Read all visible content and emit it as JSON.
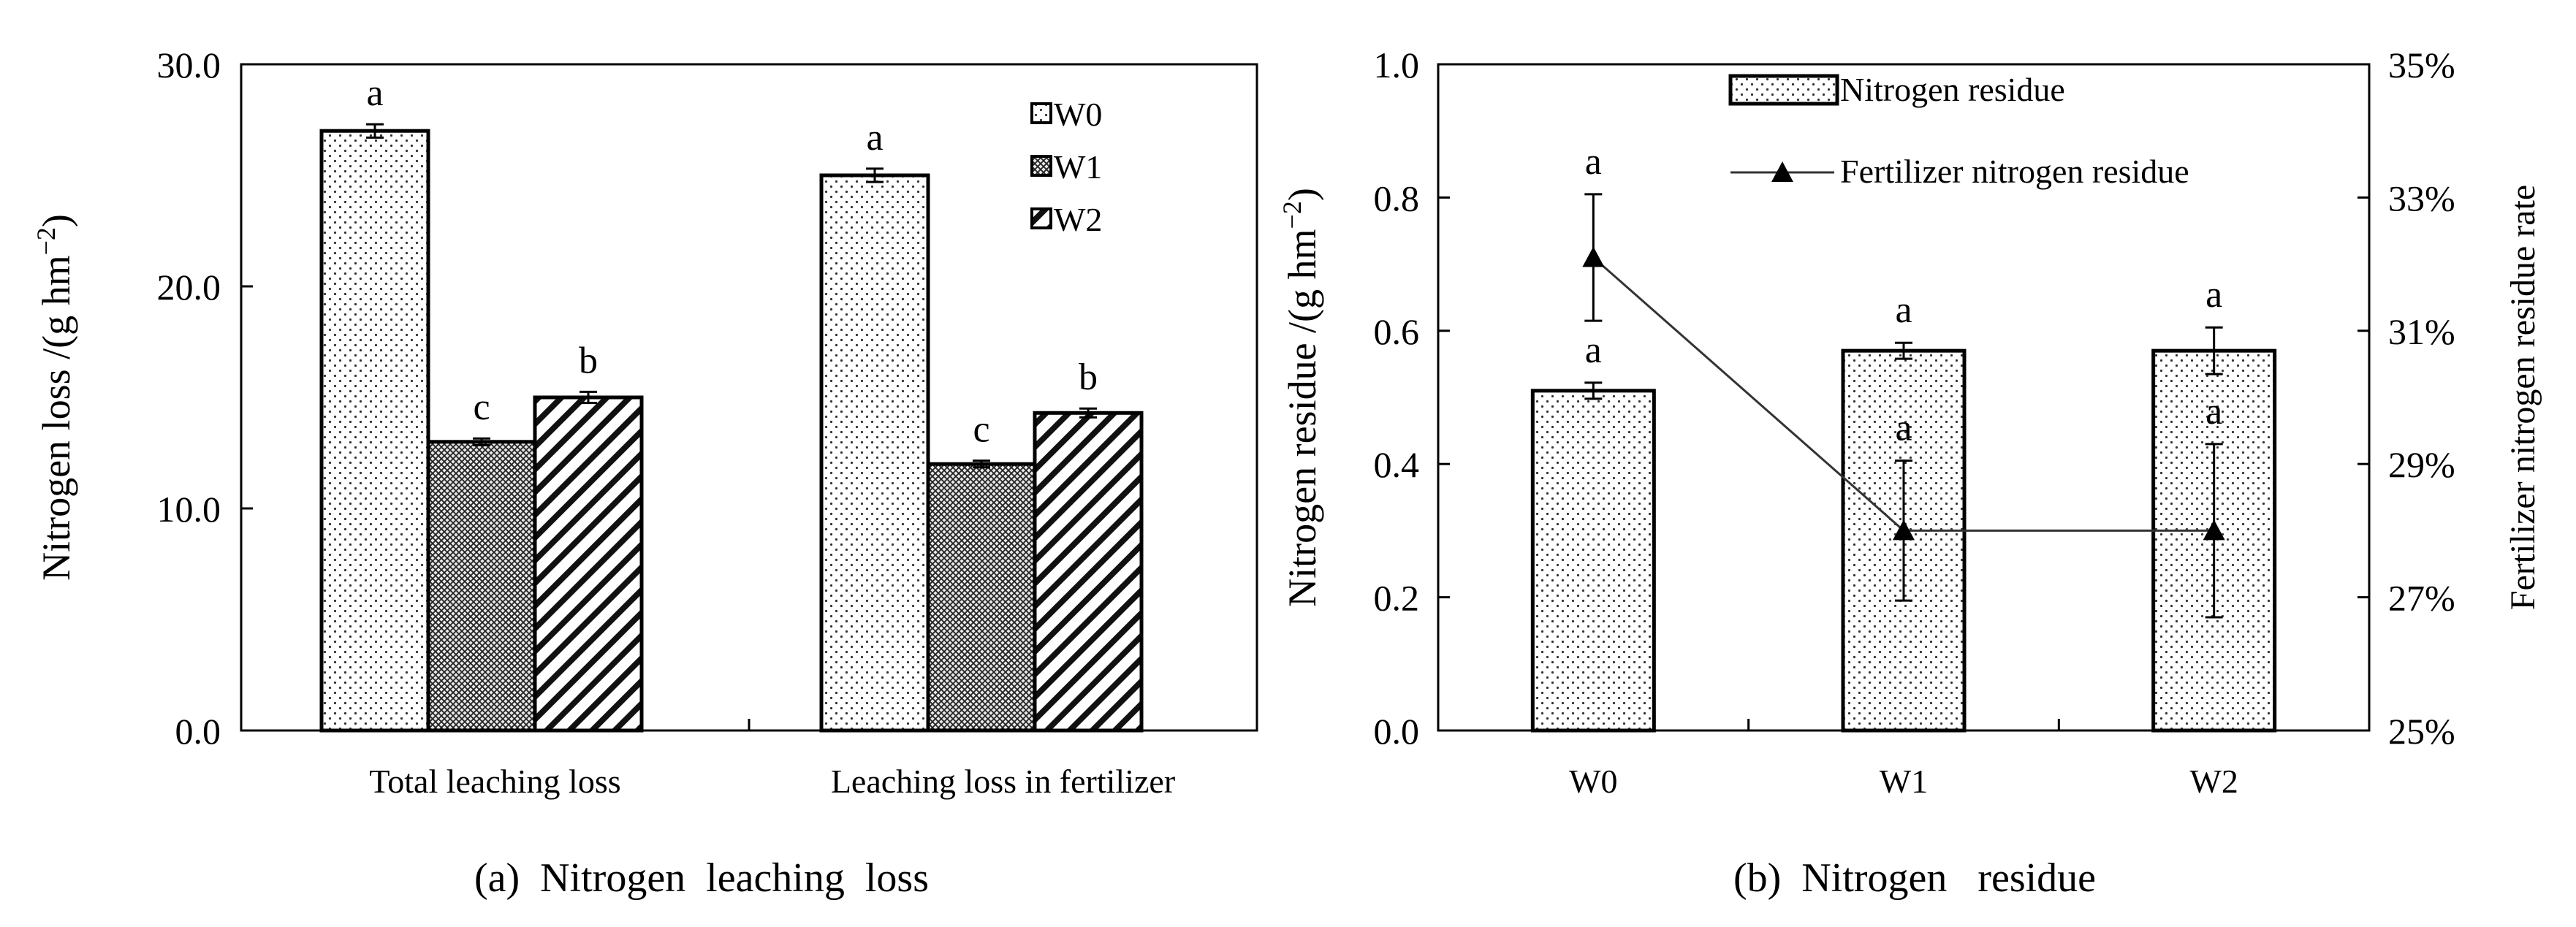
{
  "chart_data": [
    {
      "id": "a",
      "type": "bar",
      "caption": "(a)  Nitrogen  leaching  loss",
      "ylabel": "Nitrogen  loss /(g hm",
      "ylabel_sup": "−2",
      "ylabel_close": ")",
      "ylim": [
        0,
        30
      ],
      "yticks": [
        0,
        10,
        20,
        30
      ],
      "ytick_labels": [
        "0.0",
        "10.0",
        "20.0",
        "30.0"
      ],
      "categories": [
        "Total leaching loss",
        "Leaching loss in fertilizer"
      ],
      "series": [
        {
          "name": "W0",
          "pattern": "dots",
          "values": [
            27.0,
            25.0
          ],
          "errors": [
            0.3,
            0.3
          ],
          "letters": [
            "a",
            "a"
          ]
        },
        {
          "name": "W1",
          "pattern": "mesh",
          "values": [
            13.0,
            12.0
          ],
          "errors": [
            0.15,
            0.15
          ],
          "letters": [
            "c",
            "c"
          ]
        },
        {
          "name": "W2",
          "pattern": "hatch",
          "values": [
            15.0,
            14.3
          ],
          "errors": [
            0.25,
            0.2
          ],
          "letters": [
            "b",
            "b"
          ]
        }
      ],
      "legend": [
        "W0",
        "W1",
        "W2"
      ],
      "legend_position": "top-right"
    },
    {
      "id": "b",
      "type": "bar+line",
      "caption": "(b)  Nitrogen   residue",
      "ylabel": "Nitrogen residue /(g hm",
      "ylabel_sup": "−2",
      "ylabel_close": ")",
      "y2label": "Fertilizer nitrogen residue rate",
      "ylim": [
        0,
        1.0
      ],
      "yticks": [
        0,
        0.2,
        0.4,
        0.6,
        0.8,
        1.0
      ],
      "ytick_labels": [
        "0.0",
        "0.2",
        "0.4",
        "0.6",
        "0.8",
        "1.0"
      ],
      "y2lim": [
        25,
        35
      ],
      "y2ticks": [
        25,
        27,
        29,
        31,
        33,
        35
      ],
      "y2tick_labels": [
        "25%",
        "27%",
        "29%",
        "31%",
        "33%",
        "35%"
      ],
      "categories": [
        "W0",
        "W1",
        "W2"
      ],
      "bars": {
        "name": "Nitrogen residue",
        "values": [
          0.51,
          0.57,
          0.57
        ],
        "errors": [
          0.012,
          0.012,
          0.035
        ],
        "letters": [
          "a",
          "a",
          "a"
        ]
      },
      "line": {
        "name": "Fertilizer nitrogen residue",
        "values": [
          32.1,
          28.0,
          28.0
        ],
        "errors": [
          0.95,
          1.05,
          1.3
        ],
        "letters": [
          "a",
          "a",
          "a"
        ]
      },
      "legend": [
        "Nitrogen residue",
        "Fertilizer nitrogen residue"
      ],
      "legend_position": "top-right"
    }
  ]
}
